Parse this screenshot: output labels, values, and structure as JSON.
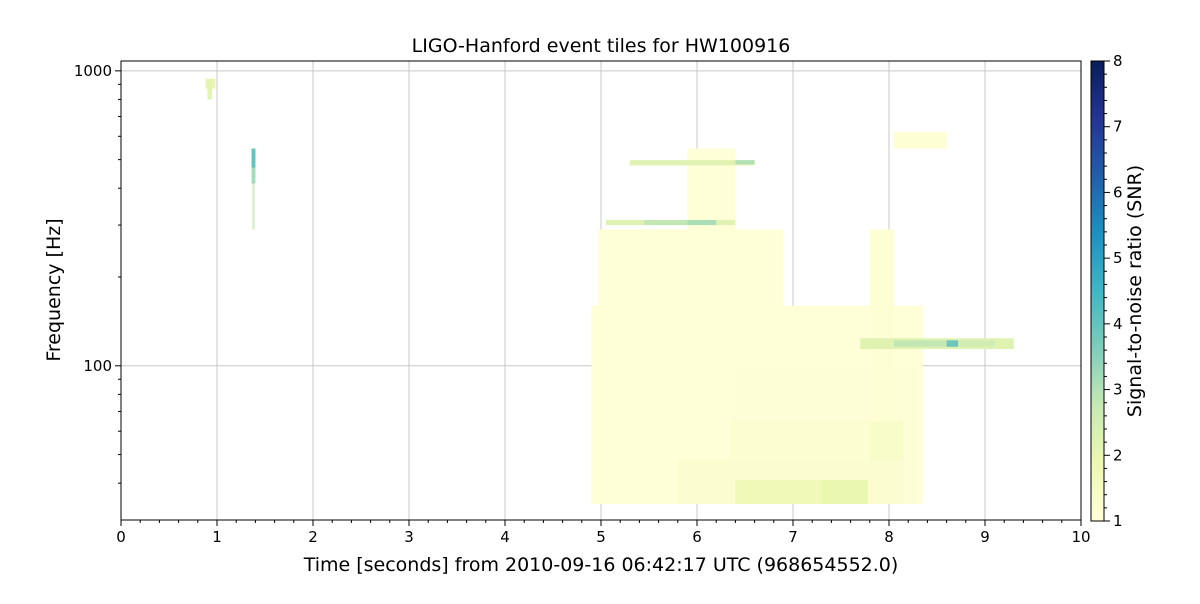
{
  "chart_data": {
    "type": "heatmap",
    "title": "LIGO-Hanford event tiles for HW100916",
    "xlabel": "Time [seconds] from 2010-09-16 06:42:17 UTC (968654552.0)",
    "ylabel": "Frequency [Hz]",
    "xlim": [
      0,
      10
    ],
    "ylim": [
      30,
      1080
    ],
    "yscale": "log",
    "grid": true,
    "x_ticks": [
      "0",
      "1",
      "2",
      "3",
      "4",
      "5",
      "6",
      "7",
      "8",
      "9",
      "10"
    ],
    "y_ticks": [
      {
        "value": 100,
        "label": "100"
      },
      {
        "value": 1000,
        "label": "1000"
      }
    ],
    "colorbar": {
      "label": "Signal-to-noise ratio (SNR)",
      "range": [
        1,
        8
      ],
      "ticks": [
        "1",
        "2",
        "3",
        "4",
        "5",
        "6",
        "7",
        "8"
      ],
      "colormap": "YlGnBu",
      "colors": [
        "#ffffd9",
        "#edf8b1",
        "#c7e9b4",
        "#7fcdbb",
        "#41b6c4",
        "#1d91c0",
        "#225ea8",
        "#253494",
        "#081d58"
      ]
    },
    "tiles": [
      {
        "t0": 4.9,
        "t1": 8.35,
        "f0": 34,
        "f1": 160,
        "snr": 1.05
      },
      {
        "t0": 4.97,
        "t1": 6.9,
        "f0": 34,
        "f1": 290,
        "snr": 1.05
      },
      {
        "t0": 5.9,
        "t1": 6.4,
        "f0": 34,
        "f1": 545,
        "snr": 1.05
      },
      {
        "t0": 6.4,
        "t1": 8.3,
        "f0": 34,
        "f1": 97,
        "snr": 1.08
      },
      {
        "t0": 7.8,
        "t1": 8.05,
        "f0": 34,
        "f1": 290,
        "snr": 1.1
      },
      {
        "t0": 6.35,
        "t1": 8.15,
        "f0": 34,
        "f1": 65,
        "snr": 1.15
      },
      {
        "t0": 5.8,
        "t1": 8.15,
        "f0": 34,
        "f1": 48,
        "snr": 1.2
      },
      {
        "t0": 6.4,
        "t1": 7.78,
        "f0": 34,
        "f1": 41,
        "snr": 1.75
      },
      {
        "t0": 7.3,
        "t1": 7.78,
        "f0": 34,
        "f1": 41,
        "snr": 1.95
      },
      {
        "t0": 7.8,
        "t1": 8.15,
        "f0": 48,
        "f1": 65,
        "snr": 1.35
      },
      {
        "t0": 8.05,
        "t1": 8.6,
        "f0": 545,
        "f1": 620,
        "snr": 1.1
      },
      {
        "t0": 5.3,
        "t1": 6.6,
        "f0": 478,
        "f1": 498,
        "snr": 2.2
      },
      {
        "t0": 6.4,
        "t1": 6.6,
        "f0": 482,
        "f1": 498,
        "snr": 3.0
      },
      {
        "t0": 5.05,
        "t1": 6.4,
        "f0": 300,
        "f1": 312,
        "snr": 2.2
      },
      {
        "t0": 5.45,
        "t1": 5.9,
        "f0": 300,
        "f1": 312,
        "snr": 2.8
      },
      {
        "t0": 5.9,
        "t1": 6.2,
        "f0": 300,
        "f1": 312,
        "snr": 3.1
      },
      {
        "t0": 7.7,
        "t1": 9.3,
        "f0": 114,
        "f1": 124,
        "snr": 2.2
      },
      {
        "t0": 8.05,
        "t1": 8.6,
        "f0": 116,
        "f1": 122,
        "snr": 2.8
      },
      {
        "t0": 8.6,
        "t1": 8.72,
        "f0": 116,
        "f1": 122,
        "snr": 3.9
      },
      {
        "t0": 8.72,
        "t1": 9.1,
        "f0": 116,
        "f1": 122,
        "snr": 2.5
      },
      {
        "t0": 0.88,
        "t1": 0.98,
        "f0": 870,
        "f1": 940,
        "snr": 2.0
      },
      {
        "t0": 0.9,
        "t1": 0.95,
        "f0": 800,
        "f1": 940,
        "snr": 2.1
      },
      {
        "t0": 1.37,
        "t1": 1.39,
        "f0": 290,
        "f1": 545,
        "snr": 2.6
      },
      {
        "t0": 1.36,
        "t1": 1.4,
        "f0": 415,
        "f1": 545,
        "snr": 3.2
      },
      {
        "t0": 1.36,
        "t1": 1.4,
        "f0": 470,
        "f1": 545,
        "snr": 4.0
      }
    ]
  }
}
